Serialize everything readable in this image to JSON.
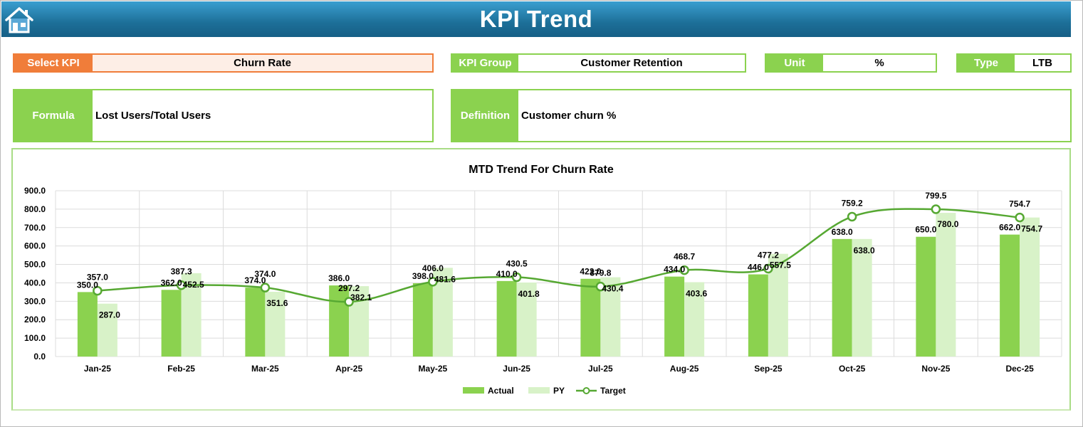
{
  "header": {
    "title": "KPI Trend"
  },
  "kpi": {
    "select_label": "Select KPI",
    "select_value": "Churn Rate",
    "group_label": "KPI Group",
    "group_value": "Customer Retention",
    "unit_label": "Unit",
    "unit_value": "%",
    "type_label": "Type",
    "type_value": "LTB",
    "formula_label": "Formula",
    "formula_value": "Lost Users/Total Users",
    "definition_label": "Definition",
    "definition_value": "Customer churn %"
  },
  "colors": {
    "actual": "#8bd24f",
    "py": "#d8f2c8",
    "target": "#56a832",
    "header": "#1f73a0"
  },
  "chart_data": {
    "type": "bar",
    "title": "MTD Trend For Churn Rate",
    "categories": [
      "Jan-25",
      "Feb-25",
      "Mar-25",
      "Apr-25",
      "May-25",
      "Jun-25",
      "Jul-25",
      "Aug-25",
      "Sep-25",
      "Oct-25",
      "Nov-25",
      "Dec-25"
    ],
    "series": [
      {
        "name": "Actual",
        "type": "bar",
        "values": [
          350.0,
          362.0,
          374.0,
          386.0,
          398.0,
          410.0,
          422.0,
          434.0,
          446.0,
          638.0,
          650.0,
          662.0
        ]
      },
      {
        "name": "PY",
        "type": "bar",
        "values": [
          287.0,
          452.5,
          351.6,
          382.1,
          481.6,
          401.8,
          430.4,
          403.6,
          557.5,
          638.0,
          780.0,
          754.7
        ]
      },
      {
        "name": "Target",
        "type": "line",
        "values": [
          357.0,
          387.3,
          374.0,
          297.2,
          406.0,
          430.5,
          379.8,
          468.7,
          477.2,
          759.2,
          799.5,
          754.7
        ]
      }
    ],
    "ylim": [
      0,
      900
    ],
    "yticks": [
      "0.0",
      "100.0",
      "200.0",
      "300.0",
      "400.0",
      "500.0",
      "600.0",
      "700.0",
      "800.0",
      "900.0"
    ],
    "legend": [
      "Actual",
      "PY",
      "Target"
    ],
    "legend_position": "bottom"
  }
}
